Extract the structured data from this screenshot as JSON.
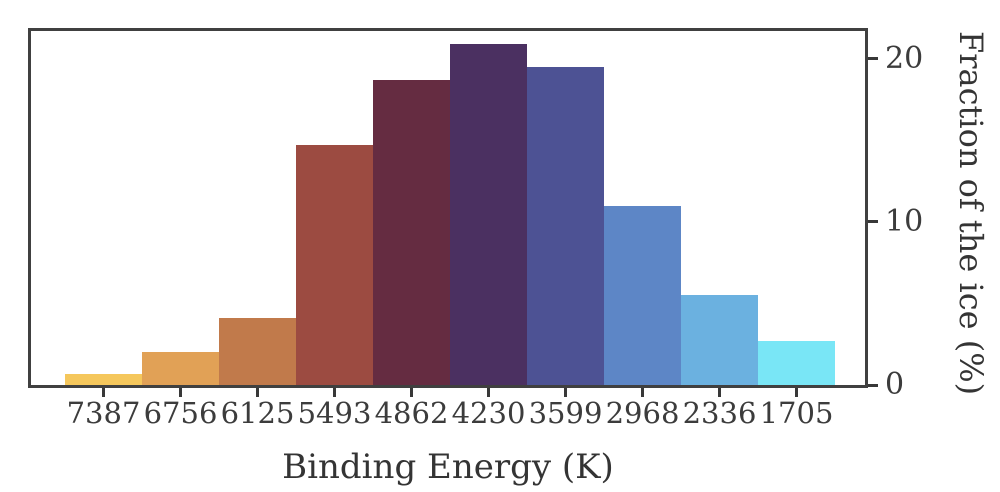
{
  "chart_data": {
    "type": "bar",
    "title": "",
    "xlabel": "Binding Energy (K)",
    "ylabel": "Fraction of the ice (%)",
    "categories": [
      "7387",
      "6756",
      "6125",
      "5493",
      "4862",
      "4230",
      "3599",
      "2968",
      "2336",
      "1705"
    ],
    "values": [
      0.7,
      2.0,
      4.1,
      14.7,
      18.7,
      20.9,
      19.5,
      11.0,
      5.5,
      2.7
    ],
    "bar_colors": [
      "#f5c75c",
      "#e1a156",
      "#c17a4b",
      "#9c4b41",
      "#652c41",
      "#4b3061",
      "#4d5294",
      "#5d86c6",
      "#6bb1e0",
      "#79e6f6"
    ],
    "yticks": [
      0,
      10,
      20
    ],
    "ylim": [
      0,
      21.7
    ],
    "x_axis_direction": "descending",
    "y_axis_side": "right",
    "grid": false,
    "legend": false,
    "axis_color": "#404040",
    "text_color": "#3c3c3c",
    "background_color": "#ffffff"
  }
}
